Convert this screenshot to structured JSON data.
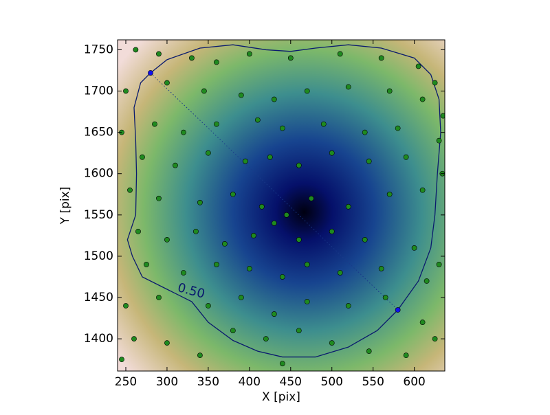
{
  "chart_data": {
    "type": "scatter",
    "xlabel": "X [pix]",
    "ylabel": "Y [pix]",
    "xlim": [
      240,
      637
    ],
    "ylim": [
      1361,
      1762
    ],
    "xticks": [
      250,
      300,
      350,
      400,
      450,
      500,
      550,
      600
    ],
    "yticks": [
      1400,
      1450,
      1500,
      1550,
      1600,
      1650,
      1700,
      1750
    ],
    "series": [
      {
        "color": "#1f8a1f",
        "x": [
          262,
          290,
          330,
          360,
          400,
          450,
          510,
          560,
          605,
          625,
          250,
          300,
          345,
          390,
          430,
          470,
          520,
          570,
          610,
          635,
          245,
          285,
          320,
          360,
          410,
          440,
          490,
          540,
          580,
          630,
          270,
          310,
          350,
          395,
          425,
          460,
          500,
          545,
          590,
          634,
          255,
          290,
          340,
          380,
          415,
          445,
          475,
          520,
          570,
          610,
          265,
          300,
          335,
          370,
          405,
          430,
          460,
          500,
          540,
          600,
          275,
          320,
          360,
          400,
          440,
          470,
          510,
          560,
          615,
          630,
          250,
          290,
          350,
          390,
          430,
          470,
          520,
          565,
          610,
          260,
          300,
          340,
          380,
          420,
          460,
          500,
          545,
          590,
          625,
          245,
          440
        ],
        "y": [
          1750,
          1745,
          1740,
          1735,
          1745,
          1740,
          1745,
          1740,
          1730,
          1710,
          1700,
          1710,
          1700,
          1695,
          1690,
          1700,
          1705,
          1700,
          1690,
          1670,
          1650,
          1660,
          1650,
          1660,
          1665,
          1655,
          1660,
          1650,
          1655,
          1640,
          1620,
          1610,
          1625,
          1615,
          1620,
          1610,
          1625,
          1615,
          1620,
          1600,
          1580,
          1570,
          1565,
          1575,
          1560,
          1550,
          1570,
          1560,
          1575,
          1580,
          1530,
          1520,
          1530,
          1515,
          1525,
          1540,
          1520,
          1530,
          1520,
          1510,
          1490,
          1480,
          1490,
          1485,
          1475,
          1490,
          1480,
          1485,
          1470,
          1490,
          1440,
          1450,
          1440,
          1450,
          1430,
          1445,
          1440,
          1450,
          1420,
          1400,
          1395,
          1380,
          1410,
          1400,
          1410,
          1395,
          1385,
          1380,
          1400,
          1375,
          1370
        ]
      },
      {
        "color": "#1010ee",
        "x": [
          280,
          580
        ],
        "y": [
          1722,
          1435
        ]
      }
    ],
    "contour": {
      "label": "0.50",
      "color": "#0a1a6e",
      "x": [
        280,
        300,
        340,
        380,
        420,
        450,
        480,
        520,
        560,
        600,
        620,
        630,
        632,
        628,
        625,
        620,
        605,
        580,
        555,
        520,
        480,
        440,
        410,
        380,
        350,
        330,
        300,
        270,
        258,
        252,
        262,
        263,
        262,
        260,
        268,
        280
      ],
      "y": [
        1722,
        1738,
        1752,
        1756,
        1750,
        1748,
        1752,
        1756,
        1752,
        1740,
        1720,
        1690,
        1650,
        1600,
        1550,
        1510,
        1470,
        1435,
        1410,
        1390,
        1378,
        1378,
        1385,
        1398,
        1420,
        1445,
        1460,
        1475,
        1500,
        1520,
        1550,
        1600,
        1640,
        1680,
        1710,
        1722
      ]
    }
  }
}
